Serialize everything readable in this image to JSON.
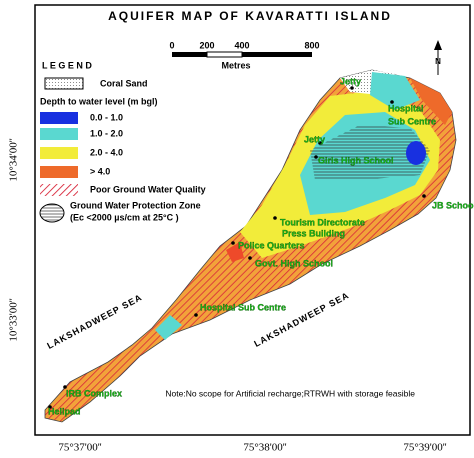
{
  "title": "AQUIFER MAP OF KAVARATTI ISLAND",
  "scale_bar": {
    "ticks": [
      "0",
      "200",
      "400",
      "800"
    ],
    "unit": "Metres"
  },
  "north": "N",
  "legend": {
    "title": "L E G E N D",
    "coral_sand": "Coral Sand",
    "depth_title": "Depth to water level (m bgl)",
    "depth_classes": [
      "0.0 - 1.0",
      "1.0 - 2.0",
      "2.0 - 4.0",
      "> 4.0"
    ],
    "poor_quality": "Poor Ground Water Quality",
    "protection_zone": [
      "Ground Water Protection Zone",
      "(Ec <2000  µs/cm at 25°C )"
    ]
  },
  "places": [
    "Jetty",
    "Jetty",
    "Hospital",
    "Sub Centre",
    "Girls High School",
    "JB School",
    "Tourism Directorate",
    "Press Building",
    "Police Quarters",
    "Govt. High School",
    "Hospital Sub Centre",
    "IRB Complex",
    "Helipad"
  ],
  "seas": [
    "LAKSHADWEEP SEA",
    "LAKSHADWEEP SEA"
  ],
  "note": "Note:No scope for Artificial recharge;RTRWH with storage feasible",
  "longitudes": [
    "75°37'00''",
    "75°38'00''",
    "75°39'00''"
  ],
  "latitudes": [
    "10°34'00''",
    "10°33'00''"
  ]
}
